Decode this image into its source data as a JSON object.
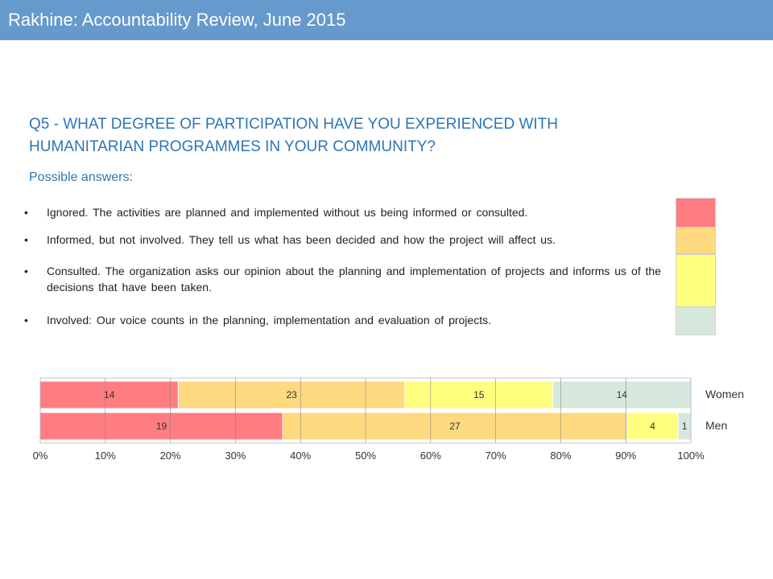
{
  "header": {
    "title": "Rakhine: Accountability Review, June 2015"
  },
  "question": {
    "line1": "Q5 - WHAT DEGREE OF PARTICIPATION HAVE YOU EXPERIENCED WITH",
    "line2": "HUMANITARIAN PROGRAMMES IN YOUR COMMUNITY?",
    "possible_answers_label": "Possible answers:"
  },
  "answers": [
    {
      "bullet": "•",
      "text": "Ignored. The activities are planned and implemented without us being informed or consulted.",
      "color": "#ff7c80"
    },
    {
      "bullet": "•",
      "text": "Informed, but not involved. They tell us what has been decided and how the project will affect us.",
      "color": "#ffd97f"
    },
    {
      "bullet": "•",
      "text": "Consulted. The organization asks our opinion about the planning and implementation of projects and informs us of the decisions that have been taken.",
      "color": "#ffff7f"
    },
    {
      "bullet": "•",
      "text": "Involved: Our voice counts in the planning, implementation and evaluation of projects.",
      "color": "#d6e8dc"
    }
  ],
  "chart_data": {
    "type": "bar",
    "orientation": "horizontal",
    "stacked": "percent",
    "categories": [
      "Women",
      "Men"
    ],
    "series": [
      {
        "values": [
          14,
          19
        ],
        "color": "#ff7c80"
      },
      {
        "values": [
          23,
          27
        ],
        "color": "#ffd97f"
      },
      {
        "values": [
          15,
          4
        ],
        "color": "#ffff7f"
      },
      {
        "values": [
          14,
          1
        ],
        "color": "#d6e8dc"
      }
    ],
    "data_labels": [
      [
        "14",
        "23",
        "15",
        "14"
      ],
      [
        "19",
        "27",
        "4",
        "1"
      ]
    ],
    "xlim": [
      0,
      100
    ],
    "xticks": [
      "0%",
      "10%",
      "20%",
      "30%",
      "40%",
      "50%",
      "60%",
      "70%",
      "80%",
      "90%",
      "100%"
    ],
    "grid": true,
    "legend": "none"
  }
}
